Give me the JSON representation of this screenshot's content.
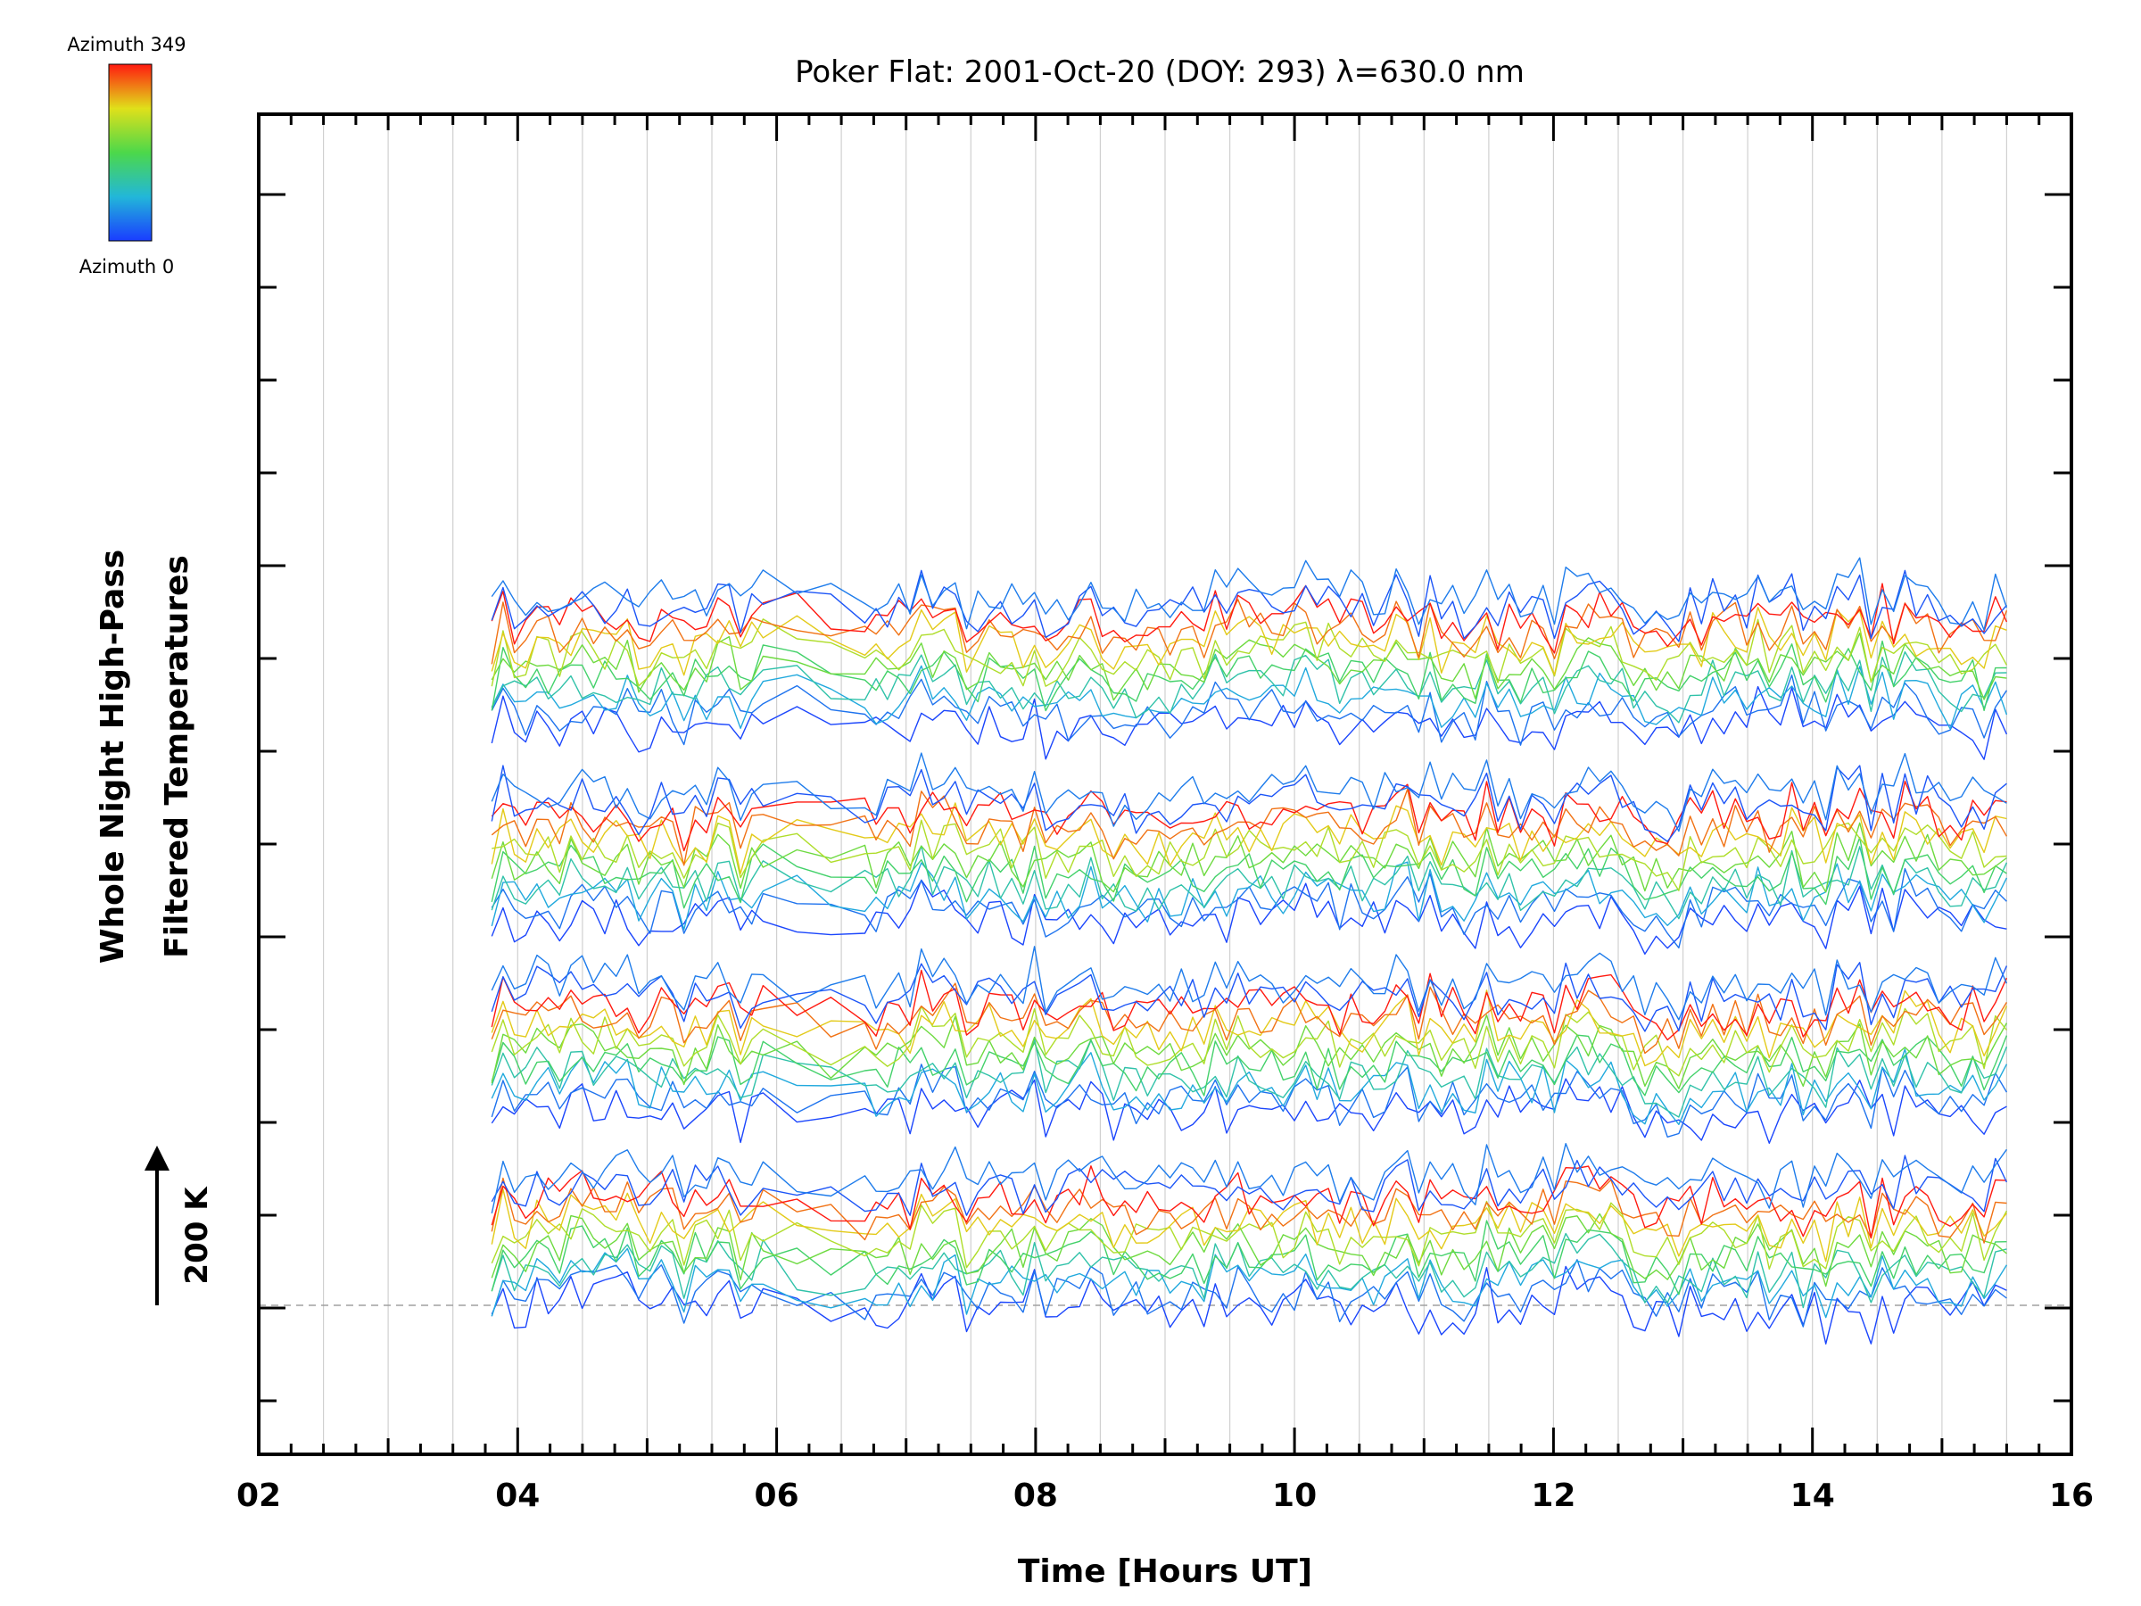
{
  "chart_data": {
    "type": "line",
    "title": "Poker Flat: 2001-Oct-20 (DOY: 293) λ=630.0 nm",
    "xlabel": "Time [Hours UT]",
    "ylabel_line1": "Whole Night High-Pass",
    "ylabel_line2": "Filtered Temperatures",
    "scale_label": "200 K",
    "xlim": [
      2,
      16
    ],
    "x_ticks": [
      2,
      4,
      6,
      8,
      10,
      12,
      14,
      16
    ],
    "x_tick_labels": [
      "02",
      "04",
      "06",
      "08",
      "10",
      "12",
      "14",
      "16"
    ],
    "grid": true,
    "colorbar": {
      "top_label": "Azimuth 349",
      "bottom_label": "Azimuth 0"
    },
    "data_start_hour": 3.8,
    "data_end_hour": 15.5,
    "series_count": 48,
    "traces_per_group": 12,
    "groups": 4
  },
  "colors": {
    "background": "#ffffff",
    "axis": "#000000",
    "grid": "#d0d0d0",
    "baseline": "#a0a0a0"
  }
}
